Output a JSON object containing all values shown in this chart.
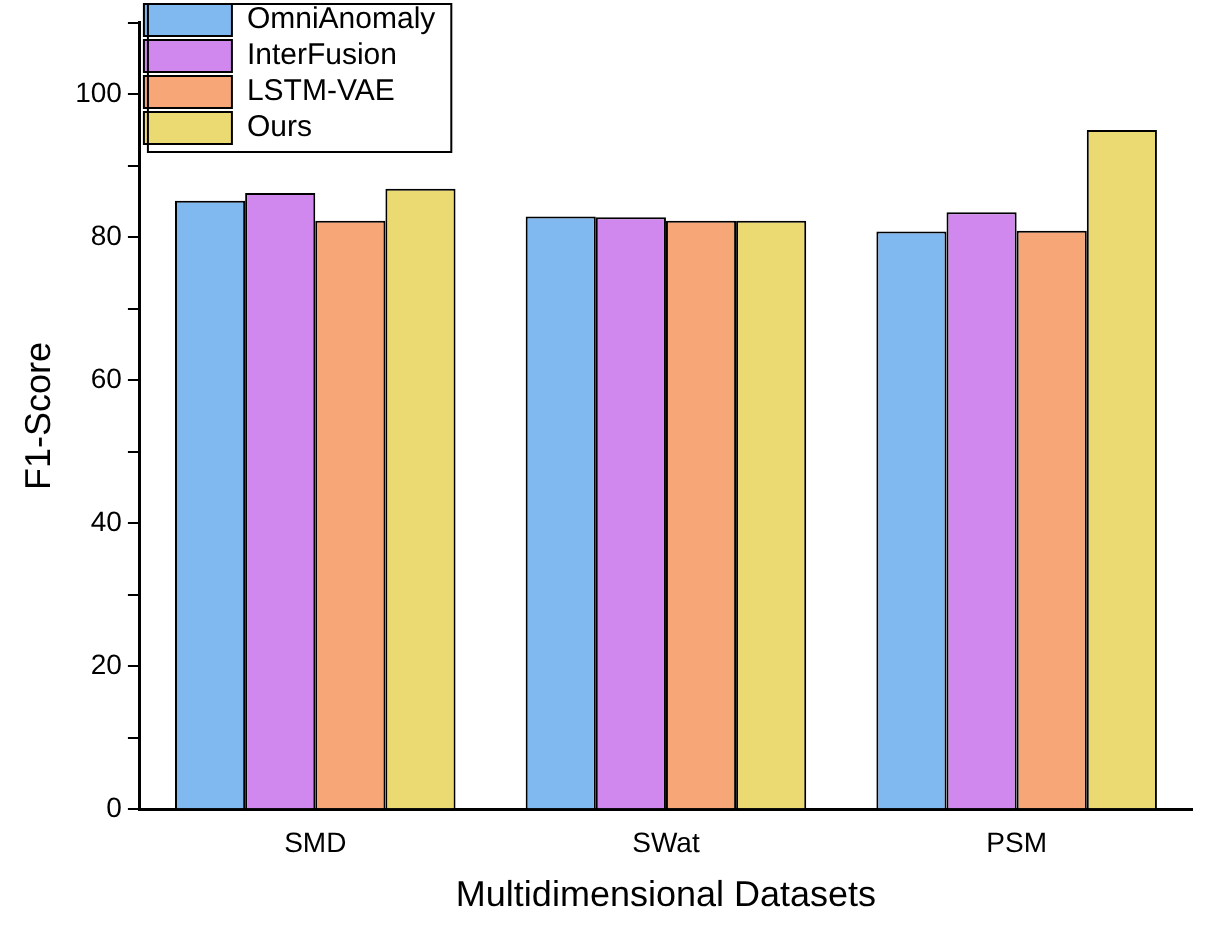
{
  "chart_data": {
    "type": "bar",
    "xlabel": "Multidimensional Datasets",
    "ylabel": "F1-Score",
    "categories": [
      "SMD",
      "SWat",
      "PSM"
    ],
    "series": [
      {
        "name": "OmniAnomaly",
        "color": "#80b8f0",
        "values": [
          85.1,
          82.9,
          80.8
        ]
      },
      {
        "name": "InterFusion",
        "color": "#d088ee",
        "values": [
          86.2,
          82.8,
          83.5
        ]
      },
      {
        "name": "LSTM-VAE",
        "color": "#f7a678",
        "values": [
          82.3,
          82.3,
          80.9
        ]
      },
      {
        "name": "Ours",
        "color": "#ebd972",
        "values": [
          86.8,
          82.3,
          95.0
        ]
      }
    ],
    "ylim": [
      0,
      110
    ],
    "yticks": [
      0,
      {
        "value": 10,
        "label": null
      },
      20,
      {
        "value": 30,
        "label": null
      },
      40,
      {
        "value": 50,
        "label": null
      },
      60,
      {
        "value": 70,
        "label": null
      },
      80,
      {
        "value": 90,
        "label": null
      },
      100,
      {
        "value": 110,
        "label": null
      }
    ],
    "grid": false,
    "legend": "top left"
  }
}
